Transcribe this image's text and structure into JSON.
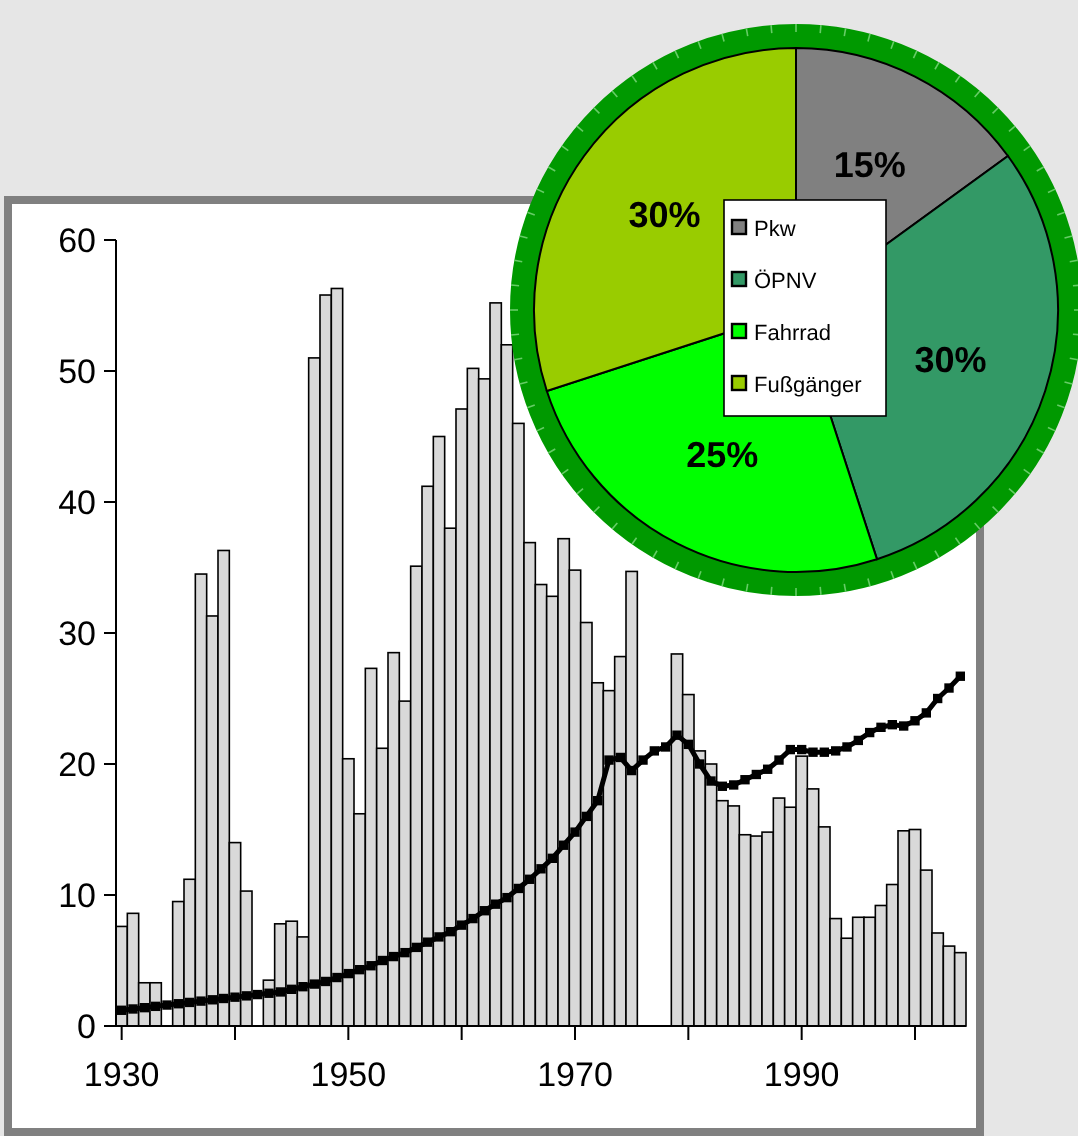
{
  "chart_data": [
    {
      "type": "bar",
      "x": [
        1930,
        1931,
        1932,
        1933,
        1934,
        1935,
        1936,
        1937,
        1938,
        1939,
        1940,
        1941,
        1942,
        1943,
        1944,
        1945,
        1946,
        1947,
        1948,
        1949,
        1950,
        1951,
        1952,
        1953,
        1954,
        1955,
        1956,
        1957,
        1958,
        1959,
        1960,
        1961,
        1962,
        1963,
        1964,
        1965,
        1966,
        1967,
        1968,
        1969,
        1970,
        1971,
        1972,
        1973,
        1974,
        1975,
        1976,
        1977,
        1978,
        1979,
        1980,
        1981,
        1982,
        1983,
        1984,
        1985,
        1986,
        1987,
        1988,
        1989,
        1990,
        1991,
        1992,
        1993,
        1994,
        1995,
        1996,
        1997,
        1998,
        1999,
        2000,
        2001,
        2002,
        2003,
        2004
      ],
      "series": [
        {
          "type": "bar",
          "color": "#d9d9d9",
          "values": [
            7.6,
            8.6,
            3.3,
            3.3,
            0,
            9.5,
            11.2,
            34.5,
            31.3,
            36.3,
            14.0,
            10.3,
            0,
            3.5,
            7.8,
            8.0,
            6.8,
            51.0,
            55.8,
            56.3,
            20.4,
            16.2,
            27.3,
            21.2,
            28.5,
            24.8,
            35.1,
            41.2,
            45.0,
            38.0,
            47.1,
            50.2,
            49.4,
            55.2,
            52,
            46,
            36.9,
            33.7,
            32.8,
            37.2,
            34.8,
            30.8,
            26.2,
            25.6,
            28.2,
            34.7,
            null,
            null,
            null,
            28.4,
            25.3,
            21,
            20.0,
            17.2,
            16.8,
            14.6,
            14.5,
            14.8,
            17.4,
            16.7,
            20.6,
            18.1,
            15.2,
            8.2,
            6.7,
            8.3,
            8.3,
            9.2,
            10.8,
            14.9,
            15.0,
            11.9,
            7.1,
            6.1,
            5.6
          ]
        },
        {
          "type": "line",
          "color": "#000000",
          "values": [
            1.2,
            1.3,
            1.4,
            1.5,
            1.6,
            1.7,
            1.8,
            1.9,
            2.0,
            2.1,
            2.2,
            2.3,
            2.4,
            2.5,
            2.6,
            2.8,
            3.0,
            3.2,
            3.4,
            3.7,
            4.0,
            4.3,
            4.6,
            5.0,
            5.3,
            5.6,
            6.0,
            6.4,
            6.8,
            7.2,
            7.7,
            8.2,
            8.8,
            9.3,
            9.8,
            10.5,
            11.2,
            12.0,
            12.8,
            13.8,
            14.8,
            16.0,
            17.2,
            20.3,
            20.5,
            19.5,
            20.3,
            21.0,
            21.3,
            22.2,
            21.5,
            20.0,
            18.7,
            18.3,
            18.4,
            18.8,
            19.2,
            19.6,
            20.3,
            21.1,
            21.1,
            20.9,
            20.9,
            21.0,
            21.3,
            21.8,
            22.4,
            22.8,
            23.0,
            22.9,
            23.3,
            23.9,
            25.0,
            25.8,
            26.7
          ]
        }
      ],
      "xlim": [
        1929.5,
        2004.5
      ],
      "xticks": [
        1930,
        {
          "value": 1940,
          "label": null
        },
        1950,
        {
          "value": 1960,
          "label": null
        },
        1970,
        {
          "value": 1980,
          "label": null
        },
        1990,
        {
          "value": 2000,
          "label": null
        }
      ],
      "ylim": [
        0,
        60
      ],
      "yticks": [
        0,
        10,
        20,
        30,
        40,
        50,
        60
      ],
      "marker": "square",
      "line_style": "solid",
      "grid": false
    },
    {
      "type": "pie",
      "categories": [
        "Pkw",
        "ÖPNV",
        "Fahrrad",
        "Fußgänger"
      ],
      "values": [
        15,
        30,
        25,
        30
      ],
      "colors": [
        "#808080",
        "#339966",
        "#00ff00",
        "#99cc00"
      ],
      "value_labels": [
        "15%",
        "30%",
        "25%",
        "30%"
      ],
      "legend": "center"
    }
  ]
}
